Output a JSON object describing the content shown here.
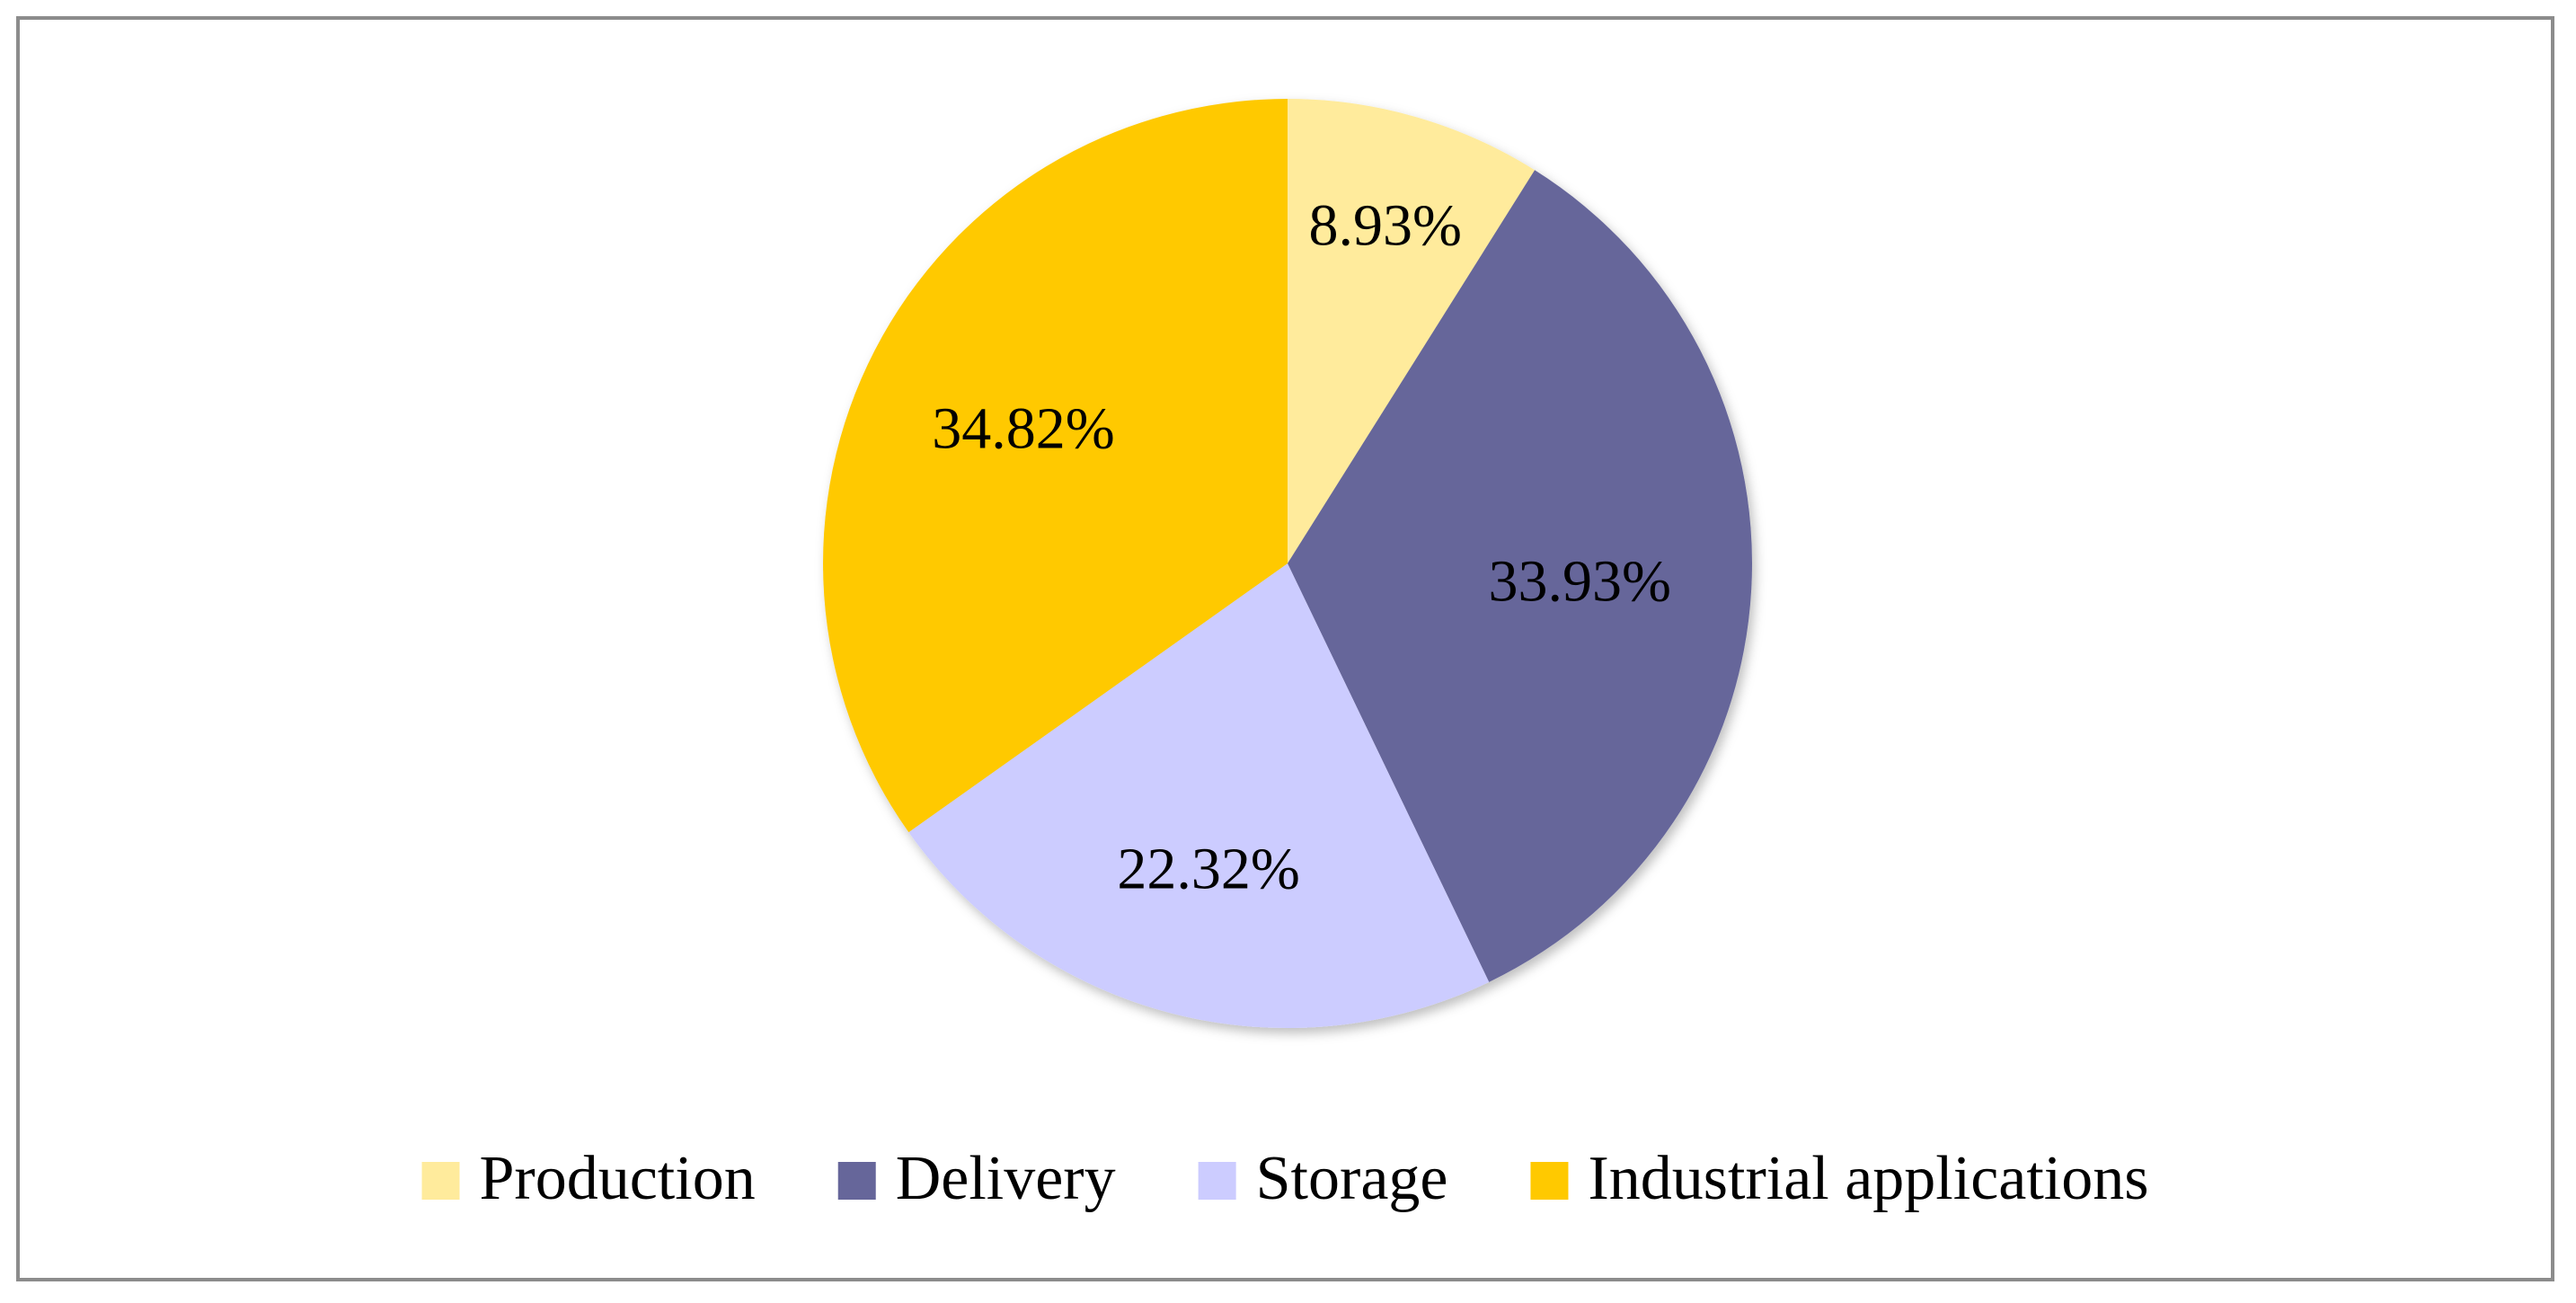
{
  "chart_data": {
    "type": "pie",
    "title": "",
    "legend_position": "bottom",
    "start_angle_deg": 0,
    "direction": "clockwise",
    "categories": [
      "Production",
      "Delivery",
      "Storage",
      "Industrial applications"
    ],
    "values": [
      8.93,
      33.93,
      22.32,
      34.82
    ],
    "labels": [
      "8.93%",
      "33.93%",
      "22.32%",
      "34.82%"
    ],
    "colors": [
      "#FFEB9C",
      "#66669A",
      "#CCCCFF",
      "#FFC900"
    ],
    "legend": [
      {
        "label": "Production",
        "color": "#FFEB9C"
      },
      {
        "label": "Delivery",
        "color": "#66669A"
      },
      {
        "label": "Storage",
        "color": "#CCCCFF"
      },
      {
        "label": "Industrial applications",
        "color": "#FFC900"
      }
    ]
  }
}
